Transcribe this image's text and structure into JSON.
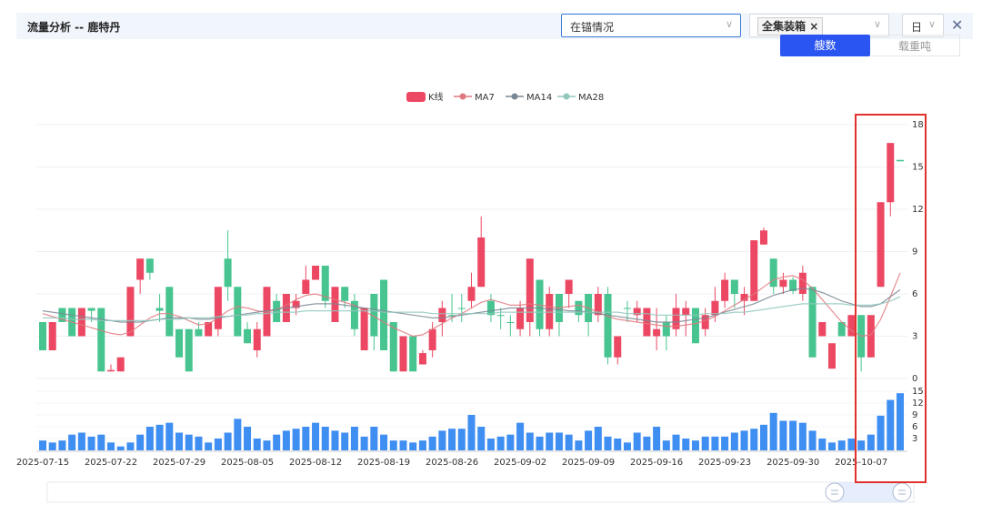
{
  "header": {
    "title": "流量分析 -- 鹿特丹",
    "status_select": "在锚情况",
    "cargo_tag": "全集装箱",
    "period_select": "日",
    "toggle": [
      "艘数",
      "载重吨"
    ]
  },
  "chart_data": {
    "type": "candlestick",
    "categories": [
      "2025-07-15",
      null,
      null,
      null,
      null,
      null,
      null,
      "2025-07-22",
      null,
      null,
      null,
      null,
      null,
      null,
      "2025-07-29",
      null,
      null,
      null,
      null,
      null,
      null,
      "2025-08-05",
      null,
      null,
      null,
      null,
      null,
      null,
      "2025-08-12",
      null,
      null,
      null,
      null,
      null,
      null,
      "2025-08-19",
      null,
      null,
      null,
      null,
      null,
      null,
      "2025-08-26",
      null,
      null,
      null,
      null,
      null,
      null,
      "2025-09-02",
      null,
      null,
      null,
      null,
      null,
      null,
      "2025-09-09",
      null,
      null,
      null,
      null,
      null,
      null,
      "2025-09-16",
      null,
      null,
      null,
      null,
      null,
      null,
      "2025-09-23",
      null,
      null,
      null,
      null,
      null,
      null,
      "2025-09-30",
      null,
      null,
      null,
      null,
      null,
      null,
      "2025-10-07",
      null,
      null,
      null,
      null
    ],
    "ylim": [
      0,
      18
    ],
    "yticks": [
      0,
      3,
      6,
      9,
      12,
      15,
      18
    ],
    "grid": true,
    "up_color": "#ec4863",
    "down_color": "#47c48f",
    "series": [
      {
        "name": "K线",
        "color": "#ec4863",
        "values": [
          [
            4,
            2,
            2,
            4
          ],
          [
            2,
            4,
            2,
            4
          ],
          [
            5,
            4,
            4,
            5
          ],
          [
            5,
            3,
            3,
            5
          ],
          [
            3,
            5,
            3,
            5
          ],
          [
            5,
            4.8,
            4,
            5
          ],
          [
            5,
            0.5,
            0.5,
            5
          ],
          [
            0.5,
            0.6,
            0.5,
            1
          ],
          [
            0.5,
            1.5,
            0.5,
            1.5
          ],
          [
            3,
            6.5,
            3,
            6.5
          ],
          [
            7,
            8.5,
            6,
            8.5
          ],
          [
            8.5,
            7.5,
            7,
            8.5
          ],
          [
            5,
            4.8,
            4,
            6
          ],
          [
            6.5,
            3,
            3,
            6.5
          ],
          [
            3.5,
            1.5,
            1.5,
            3.5
          ],
          [
            3.5,
            0.5,
            0.5,
            3.5
          ],
          [
            3.5,
            3,
            3,
            4
          ],
          [
            3,
            4,
            3,
            4
          ],
          [
            3.5,
            6.5,
            3,
            6.5
          ],
          [
            8.5,
            6.5,
            5.5,
            10.5
          ],
          [
            6.5,
            3,
            3,
            6.5
          ],
          [
            3.5,
            2.5,
            2.5,
            4
          ],
          [
            2,
            3.5,
            1.5,
            4
          ],
          [
            3,
            6.5,
            3,
            6.5
          ],
          [
            5.5,
            4,
            4,
            6
          ],
          [
            4,
            6,
            4,
            6
          ],
          [
            5,
            5.5,
            4.5,
            6
          ],
          [
            6,
            7,
            6,
            8
          ],
          [
            7,
            8,
            7,
            8
          ],
          [
            8,
            5.5,
            5,
            8
          ],
          [
            4,
            6.5,
            4,
            6.5
          ],
          [
            6.5,
            5.5,
            5,
            6.5
          ],
          [
            5.5,
            3.5,
            3,
            6
          ],
          [
            2,
            5,
            2,
            5
          ],
          [
            6,
            3,
            2,
            6
          ],
          [
            7,
            2,
            2,
            7
          ],
          [
            4,
            0.5,
            0.5,
            4
          ],
          [
            0.5,
            3,
            0.5,
            3
          ],
          [
            3,
            0.5,
            0.5,
            3
          ],
          [
            1,
            1.8,
            1,
            2
          ],
          [
            2,
            3.5,
            1.5,
            4
          ],
          [
            4,
            5,
            3,
            5.5
          ],
          [
            4.5,
            4.5,
            4,
            6
          ],
          [
            5,
            5,
            4,
            6
          ],
          [
            5.5,
            6.5,
            5,
            7.5
          ],
          [
            6.5,
            10,
            6.5,
            11.5
          ],
          [
            5.5,
            4.5,
            4,
            6
          ],
          [
            4.5,
            4.5,
            3.5,
            5
          ],
          [
            4,
            4,
            3,
            4.5
          ],
          [
            3.5,
            5,
            3,
            5.5
          ],
          [
            4,
            8.5,
            3,
            8.5
          ],
          [
            7,
            3.5,
            3,
            7
          ],
          [
            3.5,
            6,
            3,
            6.5
          ],
          [
            6,
            4,
            3,
            6
          ],
          [
            6,
            7,
            5,
            7
          ],
          [
            5.5,
            4.5,
            4,
            5.5
          ],
          [
            6,
            4,
            3,
            6
          ],
          [
            4.5,
            6,
            4,
            6.5
          ],
          [
            6,
            1.5,
            1,
            6.5
          ],
          [
            1.5,
            3,
            1,
            3
          ],
          [
            5,
            5,
            4,
            5.5
          ],
          [
            4.5,
            5,
            4,
            5.5
          ],
          [
            3,
            5,
            3,
            5
          ],
          [
            3,
            3.5,
            2,
            5
          ],
          [
            4,
            3,
            2,
            4.5
          ],
          [
            3.5,
            5,
            3,
            6
          ],
          [
            4.5,
            5,
            3,
            5.5
          ],
          [
            5,
            2.5,
            2.5,
            5
          ],
          [
            3.5,
            4.5,
            3,
            5
          ],
          [
            4.5,
            5.5,
            4,
            6.5
          ],
          [
            5.5,
            7,
            5,
            7.5
          ],
          [
            7,
            6,
            5,
            7
          ],
          [
            5.5,
            6,
            4.5,
            6.5
          ],
          [
            5.5,
            9.8,
            5.5,
            9.8
          ],
          [
            9.5,
            10.5,
            9.5,
            10.7
          ],
          [
            8.5,
            6.5,
            6,
            8.5
          ],
          [
            6.5,
            7,
            6,
            7.5
          ],
          [
            7,
            6.2,
            6,
            7.2
          ],
          [
            6,
            7.5,
            5.5,
            8
          ],
          [
            6.5,
            1.5,
            1.5,
            6.5
          ],
          [
            3,
            4,
            3,
            4
          ],
          [
            0.7,
            2.5,
            0.7,
            2.5
          ],
          [
            4,
            3,
            3,
            4
          ],
          [
            3,
            4.5,
            3,
            4.5
          ],
          [
            4.5,
            1.5,
            0.5,
            4.5
          ],
          [
            1.5,
            4.5,
            1.5,
            4.5
          ],
          [
            6.5,
            12.5,
            6.5,
            12.5
          ],
          [
            12.5,
            16.7,
            11.5,
            16.7
          ],
          [
            15.5,
            15.4,
            15.4,
            15.5
          ]
        ]
      },
      {
        "name": "MA7",
        "color": "#e0787f",
        "values": [
          4.6,
          4.4,
          4.2,
          4,
          3.8,
          3.6,
          3.4,
          3.2,
          3.1,
          3.3,
          3.8,
          4.3,
          4.6,
          4.6,
          4.4,
          4.1,
          3.8,
          3.9,
          4.3,
          4.8,
          5.1,
          5,
          4.8,
          4.7,
          4.9,
          5.2,
          5.6,
          5.9,
          6,
          5.8,
          5.6,
          5.4,
          5.2,
          4.8,
          4.4,
          4,
          3.6,
          3.3,
          3,
          3.1,
          3.5,
          3.9,
          4.3,
          4.6,
          5,
          5.4,
          5.6,
          5.4,
          5.2,
          5.2,
          5.3,
          5.2,
          5.1,
          5,
          5.1,
          5.2,
          5,
          4.7,
          4.4,
          4.2,
          4.1,
          4,
          3.9,
          3.8,
          3.7,
          3.7,
          3.8,
          3.9,
          4.1,
          4.4,
          4.8,
          5.2,
          5.6,
          6,
          6.5,
          7,
          7.2,
          7.3,
          7,
          6.4,
          5.6,
          4.8,
          4,
          3.4,
          3,
          3.1,
          4.2,
          5.8,
          7.5
        ]
      },
      {
        "name": "MA14",
        "color": "#7a8794",
        "values": [
          4.8,
          4.7,
          4.6,
          4.5,
          4.4,
          4.3,
          4.2,
          4.1,
          4,
          4,
          4,
          4.1,
          4.2,
          4.3,
          4.3,
          4.3,
          4.2,
          4.2,
          4.3,
          4.4,
          4.5,
          4.6,
          4.7,
          4.8,
          4.9,
          5,
          5.1,
          5.2,
          5.3,
          5.3,
          5.3,
          5.2,
          5.1,
          5,
          4.9,
          4.8,
          4.7,
          4.6,
          4.5,
          4.4,
          4.3,
          4.3,
          4.4,
          4.5,
          4.6,
          4.7,
          4.8,
          4.9,
          5,
          5,
          5,
          5,
          4.9,
          4.9,
          4.8,
          4.8,
          4.7,
          4.6,
          4.5,
          4.4,
          4.3,
          4.2,
          4.1,
          4,
          4,
          4,
          4.1,
          4.2,
          4.3,
          4.5,
          4.7,
          4.9,
          5.1,
          5.3,
          5.6,
          5.9,
          6.1,
          6.3,
          6.4,
          6.3,
          6.1,
          5.8,
          5.5,
          5.3,
          5.1,
          5.1,
          5.3,
          5.8,
          6.3
        ]
      },
      {
        "name": "MA28",
        "color": "#91c7bd",
        "values": [
          4.3,
          4.3,
          4.3,
          4.2,
          4.2,
          4.2,
          4.1,
          4.1,
          4.1,
          4.1,
          4.1,
          4.1,
          4.2,
          4.2,
          4.2,
          4.3,
          4.3,
          4.3,
          4.4,
          4.4,
          4.5,
          4.5,
          4.6,
          4.6,
          4.7,
          4.7,
          4.7,
          4.8,
          4.8,
          4.8,
          4.8,
          4.8,
          4.8,
          4.8,
          4.8,
          4.7,
          4.7,
          4.7,
          4.7,
          4.7,
          4.6,
          4.6,
          4.6,
          4.6,
          4.6,
          4.6,
          4.6,
          4.7,
          4.7,
          4.7,
          4.7,
          4.7,
          4.7,
          4.7,
          4.7,
          4.7,
          4.7,
          4.7,
          4.7,
          4.7,
          4.6,
          4.6,
          4.6,
          4.5,
          4.5,
          4.5,
          4.5,
          4.5,
          4.6,
          4.6,
          4.6,
          4.7,
          4.7,
          4.8,
          4.9,
          5,
          5.1,
          5.2,
          5.3,
          5.3,
          5.3,
          5.3,
          5.3,
          5.2,
          5.2,
          5.2,
          5.3,
          5.5,
          5.8
        ]
      }
    ],
    "volume": {
      "color": "#3f8ef2",
      "ylim": [
        0,
        15
      ],
      "yticks": [
        3,
        6,
        9,
        12,
        15
      ],
      "values": [
        2.5,
        2,
        2.5,
        4,
        4.5,
        3.5,
        4,
        2,
        1,
        2,
        4,
        6,
        6.5,
        7,
        4.5,
        4,
        3.5,
        2,
        3,
        4.5,
        8,
        6,
        3,
        2.5,
        4,
        5,
        5.5,
        6,
        7,
        6,
        5,
        4.5,
        6,
        3.5,
        6,
        4,
        2.5,
        2.5,
        2,
        2.5,
        3.5,
        5,
        5.5,
        5.5,
        9,
        6,
        3,
        3.5,
        4,
        7,
        4.5,
        3.5,
        4.5,
        4.5,
        4,
        2.5,
        5,
        6,
        3.5,
        3,
        2,
        4.5,
        3.5,
        6,
        2.5,
        4,
        3,
        2.5,
        3.5,
        3.5,
        3.5,
        4.5,
        5,
        5.5,
        6.5,
        9.5,
        7.5,
        7.5,
        7,
        5,
        3,
        2,
        2.5,
        3,
        2.5,
        4,
        8.8,
        12.8,
        14.5
      ]
    }
  }
}
